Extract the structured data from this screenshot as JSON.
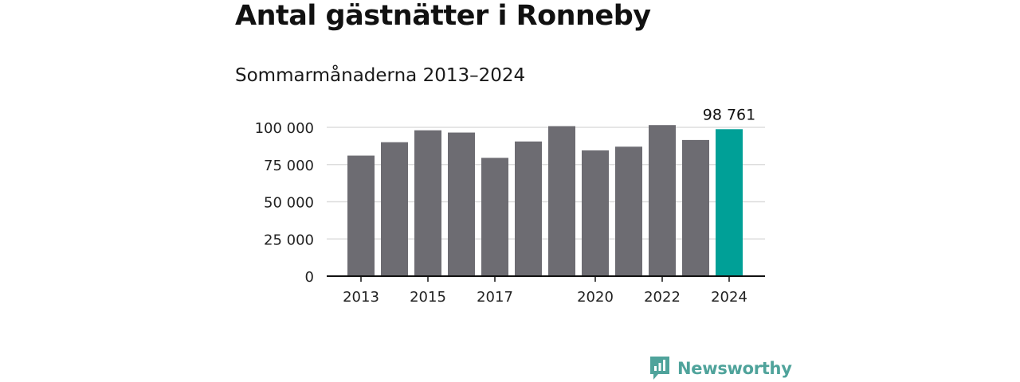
{
  "title": "Antal gästnätter i Ronneby",
  "subtitle": "Sommarmånaderna 2013–2024",
  "brand": {
    "name": "Newsworthy",
    "color": "#4fa39b"
  },
  "colors": {
    "bar": "#6d6c72",
    "highlight": "#00a097",
    "grid": "#dddddd",
    "axis": "#111111",
    "text": "#222222"
  },
  "chart_data": {
    "type": "bar",
    "categories": [
      "2013",
      "2014",
      "2015",
      "2016",
      "2017",
      "2018",
      "2019",
      "2020",
      "2021",
      "2022",
      "2023",
      "2024"
    ],
    "values": [
      81000,
      90000,
      98000,
      96500,
      79500,
      90500,
      100800,
      84500,
      87000,
      101500,
      91500,
      98761
    ],
    "highlight_index": 11,
    "value_label": "98 761",
    "xtick_labels": [
      "2013",
      "2015",
      "2017",
      "2020",
      "2022",
      "2024"
    ],
    "yticks": [
      0,
      25000,
      50000,
      75000,
      100000
    ],
    "ytick_labels": [
      "0",
      "25 000",
      "50 000",
      "75 000",
      "100 000"
    ],
    "ylim": [
      0,
      100000
    ],
    "grid": true,
    "legend": "none"
  }
}
